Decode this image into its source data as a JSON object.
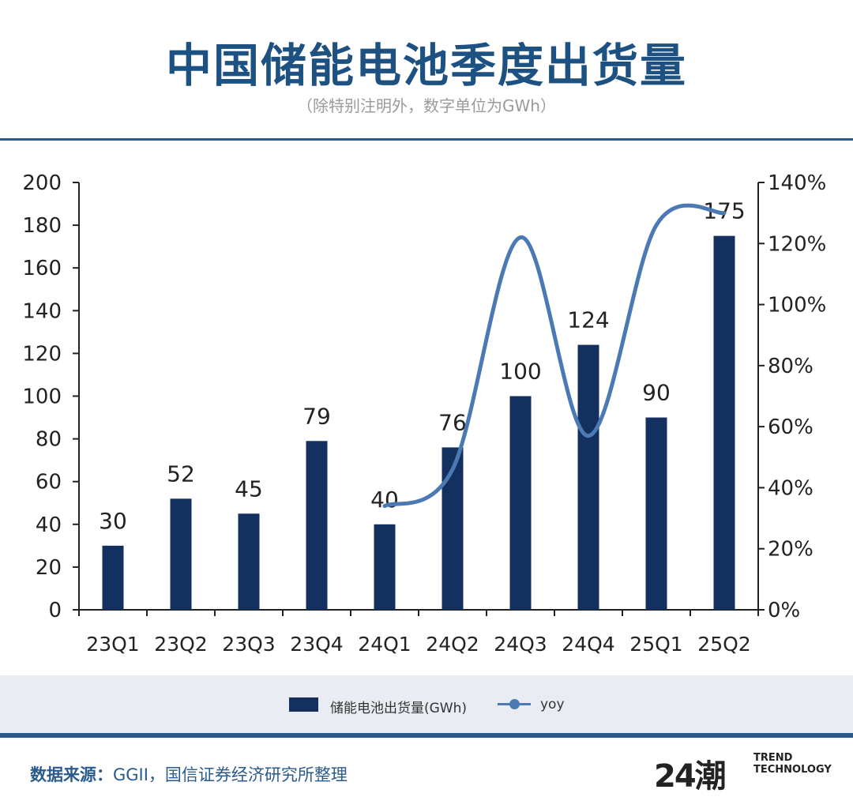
{
  "header": {
    "title": "中国储能电池季度出货量",
    "subtitle": "（除特别注明外，数字单位为GWh）"
  },
  "legend": {
    "bars_label": "储能电池出货量(GWh)",
    "line_label": "yoy"
  },
  "footer": {
    "source_label": "数据来源：",
    "source_text": "GGII，国信证券经济研究所整理",
    "logo_mark": "24潮",
    "logo_line1": "TREND",
    "logo_line2": "TECHNOLOGY"
  },
  "colors": {
    "bar": "#13305e",
    "line": "#4a79b4",
    "accent": "#2b5a8c"
  },
  "chart_data": {
    "type": "bar",
    "title": "中国储能电池季度出货量",
    "categories": [
      "23Q1",
      "23Q2",
      "23Q3",
      "23Q4",
      "24Q1",
      "24Q2",
      "24Q3",
      "24Q4",
      "25Q1",
      "25Q2"
    ],
    "series": [
      {
        "name": "储能电池出货量(GWh)",
        "type": "bar",
        "axis": "left",
        "values": [
          30,
          52,
          45,
          79,
          40,
          76,
          100,
          124,
          90,
          175
        ]
      },
      {
        "name": "yoy",
        "type": "line",
        "axis": "right",
        "values": [
          null,
          null,
          null,
          null,
          0.34,
          0.46,
          1.22,
          0.57,
          1.26,
          1.3
        ]
      }
    ],
    "ylim": [
      0,
      200
    ],
    "yticks": [
      0,
      20,
      40,
      60,
      80,
      100,
      120,
      140,
      160,
      180,
      200
    ],
    "y2lim": [
      0,
      1.4
    ],
    "y2ticks": [
      "0%",
      "20%",
      "40%",
      "60%",
      "80%",
      "100%",
      "120%",
      "140%"
    ],
    "legend_position": "bottom"
  }
}
